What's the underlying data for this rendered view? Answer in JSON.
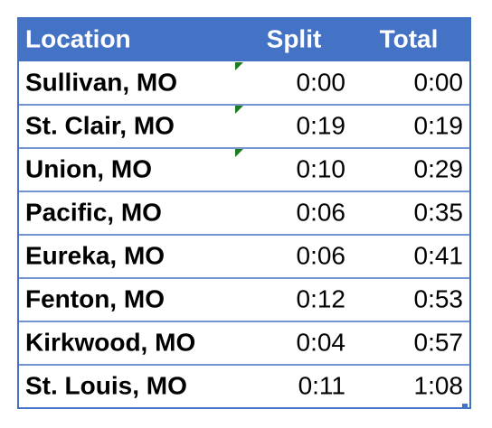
{
  "table": {
    "header": [
      "Location",
      "Split",
      "Total"
    ],
    "rows": [
      [
        "Sullivan, MO",
        "0:00",
        "0:00"
      ],
      [
        "St. Clair, MO",
        "0:19",
        "0:19"
      ],
      [
        "Union, MO",
        "0:10",
        "0:29"
      ],
      [
        "Pacific, MO",
        "0:06",
        "0:35"
      ],
      [
        "Eureka, MO",
        "0:06",
        "0:41"
      ],
      [
        "Fenton, MO",
        "0:12",
        "0:53"
      ],
      [
        "Kirkwood, MO",
        "0:04",
        "0:57"
      ],
      [
        "St. Louis, MO",
        "0:11",
        "1:08"
      ]
    ]
  }
}
